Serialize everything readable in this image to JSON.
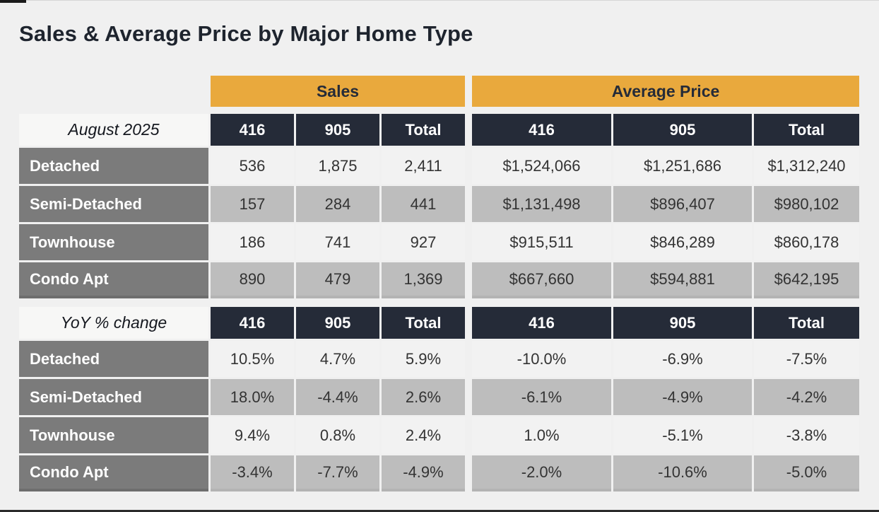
{
  "page": {
    "title": "Sales & Average Price by Major Home Type",
    "colors": {
      "accent_orange": "#E9A93D",
      "header_dark": "#252B38",
      "row_label_gray": "#7B7B7B",
      "stripe_light": "#F2F2F2",
      "stripe_gray": "#BDBDBD",
      "background": "#F0F0F0"
    }
  },
  "groups": {
    "sales": "Sales",
    "average_price": "Average Price"
  },
  "columns": {
    "c1": "416",
    "c2": "905",
    "c3": "Total"
  },
  "sections": [
    {
      "label": "August 2025",
      "rows": [
        {
          "label": "Detached",
          "values": [
            "536",
            "1,875",
            "2,411",
            "$1,524,066",
            "$1,251,686",
            "$1,312,240"
          ]
        },
        {
          "label": "Semi-Detached",
          "values": [
            "157",
            "284",
            "441",
            "$1,131,498",
            "$896,407",
            "$980,102"
          ]
        },
        {
          "label": "Townhouse",
          "values": [
            "186",
            "741",
            "927",
            "$915,511",
            "$846,289",
            "$860,178"
          ]
        },
        {
          "label": "Condo Apt",
          "values": [
            "890",
            "479",
            "1,369",
            "$667,660",
            "$594,881",
            "$642,195"
          ]
        }
      ]
    },
    {
      "label": "YoY % change",
      "rows": [
        {
          "label": "Detached",
          "values": [
            "10.5%",
            "4.7%",
            "5.9%",
            "-10.0%",
            "-6.9%",
            "-7.5%"
          ]
        },
        {
          "label": "Semi-Detached",
          "values": [
            "18.0%",
            "-4.4%",
            "2.6%",
            "-6.1%",
            "-4.9%",
            "-4.2%"
          ]
        },
        {
          "label": "Townhouse",
          "values": [
            "9.4%",
            "0.8%",
            "2.4%",
            "1.0%",
            "-5.1%",
            "-3.8%"
          ]
        },
        {
          "label": "Condo Apt",
          "values": [
            "-3.4%",
            "-7.7%",
            "-4.9%",
            "-2.0%",
            "-10.6%",
            "-5.0%"
          ]
        }
      ]
    }
  ]
}
